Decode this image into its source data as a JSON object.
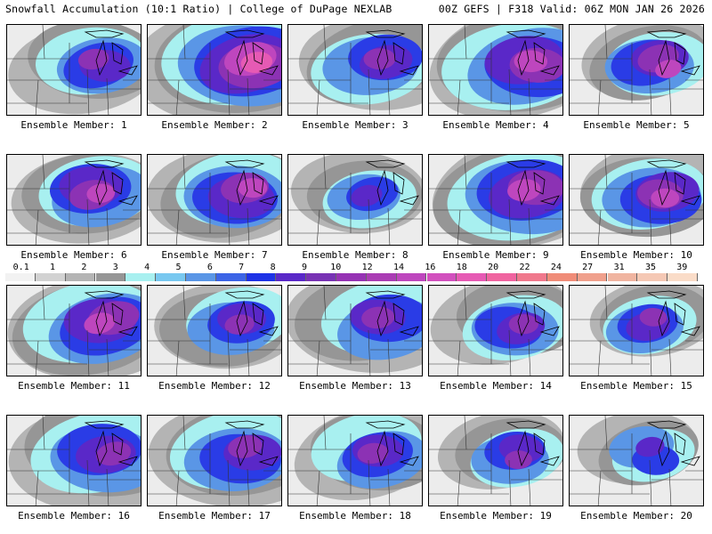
{
  "header": {
    "left": "Snowfall Accumulation (10:1 Ratio) | College of DuPage NEXLAB",
    "right": "00Z GEFS | F318 Valid: 06Z MON JAN 26 2026"
  },
  "colorbar": {
    "labels": [
      "0.1",
      "1",
      "2",
      "3",
      "4",
      "5",
      "6",
      "7",
      "8",
      "9",
      "10",
      "12",
      "14",
      "16",
      "18",
      "20",
      "22",
      "24",
      "27",
      "31",
      "35",
      "39"
    ],
    "colors": [
      "#f2f2f2",
      "#d2d2d2",
      "#b4b4b4",
      "#969696",
      "#a8f0f0",
      "#78c8f0",
      "#5a96e6",
      "#3c64e6",
      "#1e32e6",
      "#5a28c8",
      "#7832b4",
      "#9632b4",
      "#aa3cb4",
      "#be46be",
      "#d250be",
      "#e65ab4",
      "#f064a0",
      "#f0788c",
      "#f08c78",
      "#f0a08c",
      "#f0b4a0",
      "#f5c8b4",
      "#fadcc8"
    ]
  },
  "members": [
    {
      "label": "Ensemble Member: 1",
      "coverage": 0.55,
      "intensity": 0.55
    },
    {
      "label": "Ensemble Member: 2",
      "coverage": 0.85,
      "intensity": 0.8
    },
    {
      "label": "Ensemble Member: 3",
      "coverage": 0.6,
      "intensity": 0.55
    },
    {
      "label": "Ensemble Member: 4",
      "coverage": 0.8,
      "intensity": 0.75
    },
    {
      "label": "Ensemble Member: 5",
      "coverage": 0.45,
      "intensity": 0.75
    },
    {
      "label": "Ensemble Member: 6",
      "coverage": 0.55,
      "intensity": 0.65
    },
    {
      "label": "Ensemble Member: 7",
      "coverage": 0.6,
      "intensity": 0.7
    },
    {
      "label": "Ensemble Member: 8",
      "coverage": 0.45,
      "intensity": 0.45
    },
    {
      "label": "Ensemble Member: 9",
      "coverage": 0.8,
      "intensity": 0.7
    },
    {
      "label": "Ensemble Member: 10",
      "coverage": 0.55,
      "intensity": 0.65
    },
    {
      "label": "Ensemble Member: 11",
      "coverage": 0.7,
      "intensity": 0.65
    },
    {
      "label": "Ensemble Member: 12",
      "coverage": 0.5,
      "intensity": 0.55
    },
    {
      "label": "Ensemble Member: 13",
      "coverage": 0.65,
      "intensity": 0.6
    },
    {
      "label": "Ensemble Member: 14",
      "coverage": 0.5,
      "intensity": 0.55
    },
    {
      "label": "Ensemble Member: 15",
      "coverage": 0.4,
      "intensity": 0.55
    },
    {
      "label": "Ensemble Member: 16",
      "coverage": 0.75,
      "intensity": 0.6
    },
    {
      "label": "Ensemble Member: 17",
      "coverage": 0.7,
      "intensity": 0.55
    },
    {
      "label": "Ensemble Member: 18",
      "coverage": 0.55,
      "intensity": 0.6
    },
    {
      "label": "Ensemble Member: 19",
      "coverage": 0.4,
      "intensity": 0.5
    },
    {
      "label": "Ensemble Member: 20",
      "coverage": 0.35,
      "intensity": 0.45
    }
  ]
}
